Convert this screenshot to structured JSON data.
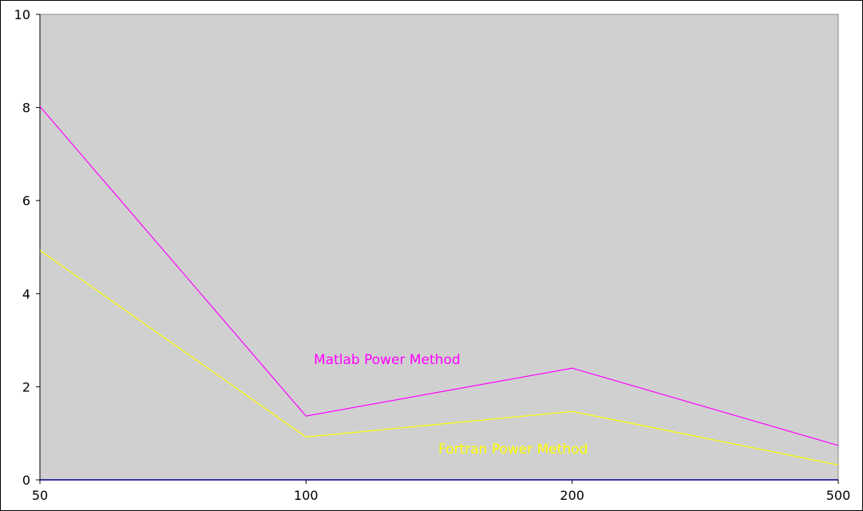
{
  "chart_data": {
    "type": "line",
    "x": [
      "50",
      "100",
      "200",
      "500"
    ],
    "ylim": [
      0,
      10
    ],
    "yticks": [
      "0",
      "2",
      "4",
      "6",
      "8",
      "10"
    ],
    "grid": false,
    "plot_background": "#d0d0d0",
    "series": [
      {
        "name": "Matlab Power Method",
        "color": "#ff00ff",
        "values": [
          8.02,
          1.37,
          2.4,
          0.74
        ]
      },
      {
        "name": "Fortran Power Method",
        "color": "#ffff00",
        "values": [
          4.93,
          0.92,
          1.47,
          0.32
        ]
      }
    ]
  }
}
